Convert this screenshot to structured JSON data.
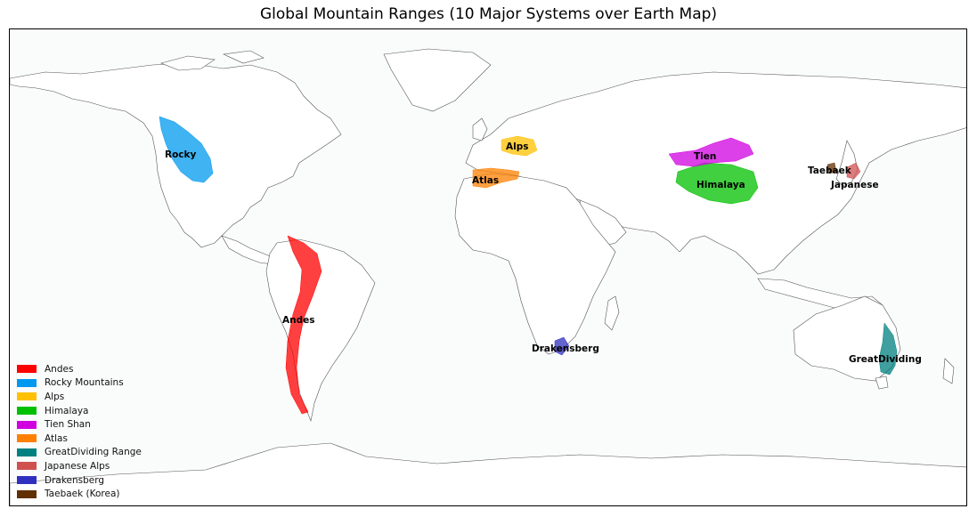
{
  "title": "Global Mountain Ranges (10 Major Systems over Earth Map)",
  "map": {
    "land_fill": "#ffffff",
    "ocean_fill": "#fafbfb",
    "coast_color": "#555555",
    "border_color": "#cfcfcf"
  },
  "ranges": [
    {
      "id": "andes",
      "name": "Andes",
      "label": "Andes",
      "color": "#ff0000"
    },
    {
      "id": "rocky",
      "name": "Rocky Mountains",
      "label": "Rocky",
      "color": "#0099ee"
    },
    {
      "id": "alps",
      "name": "Alps",
      "label": "Alps",
      "color": "#ffc000"
    },
    {
      "id": "himalaya",
      "name": "Himalaya",
      "label": "Himalaya",
      "color": "#00c000"
    },
    {
      "id": "tienshan",
      "name": "Tien Shan",
      "label": "Tien",
      "color": "#d000e0"
    },
    {
      "id": "atlas",
      "name": "Atlas",
      "label": "Atlas",
      "color": "#ff8000"
    },
    {
      "id": "greatdividing",
      "name": "GreatDividing Range",
      "label": "GreatDividing",
      "color": "#008080"
    },
    {
      "id": "japanese",
      "name": "Japanese Alps",
      "label": "Japanese",
      "color": "#d05050"
    },
    {
      "id": "drakensberg",
      "name": "Drakensberg",
      "label": "Drakensberg",
      "color": "#3030c0"
    },
    {
      "id": "taebaek",
      "name": "Taebaek (Korea)",
      "label": "Taebaek",
      "color": "#603000"
    }
  ]
}
